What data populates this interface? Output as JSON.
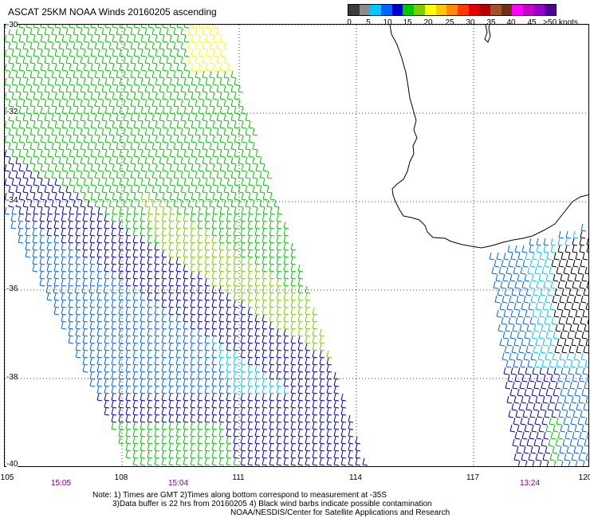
{
  "title": "ASCAT 25KM NOAA Winds 20160205 ascending",
  "legend": {
    "labels": [
      "0",
      "5",
      "10",
      "15",
      "20",
      "25",
      "30",
      "35",
      "40",
      "45",
      ">50 knots"
    ],
    "colors": [
      "#3c3c3c",
      "#8c8c8c",
      "#00c8ff",
      "#0064ff",
      "#0000c8",
      "#00c800",
      "#7ccd00",
      "#ffff00",
      "#ffc800",
      "#ff8c00",
      "#ff3c00",
      "#e60000",
      "#b40000",
      "#a0522d",
      "#6e3214",
      "#ff00ff",
      "#c800c8",
      "#9600c8",
      "#500096"
    ]
  },
  "axes": {
    "lat_labels": [
      "-30",
      "-32",
      "-34",
      "-36",
      "-38",
      "-40"
    ],
    "lon_labels": [
      "105",
      "108",
      "111",
      "114",
      "117",
      "120"
    ],
    "lat_range": [
      -30,
      -40
    ],
    "lon_range": [
      105,
      120
    ],
    "gridlines": "dotted"
  },
  "times": [
    {
      "label": "15:05",
      "lon": 106.5
    },
    {
      "label": "15:04",
      "lon": 109.5
    },
    {
      "label": "13:24",
      "lon": 118.5
    }
  ],
  "notes": [
    "Note: 1) Times are GMT 2)Times along bottom correspond to measurement at -35S",
    "3)Data buffer is 22 hrs from 20160205 4) Black wind barbs indicate possible contamination",
    "NOAA/NESDIS/Center for Satellite Applications and Research"
  ],
  "map_layers": [
    "wind barb swath 1",
    "wind barb swath 2",
    "coastline"
  ],
  "wind_colors": {
    "swath1": [
      "#ffff00",
      "#7ccd00",
      "#00c800",
      "#0000c8",
      "#0064ff",
      "#00c8ff"
    ],
    "swath2": [
      "#00c8ff",
      "#0064ff",
      "#0000c8",
      "#000000",
      "#00c800"
    ],
    "coastline": "#000000"
  }
}
